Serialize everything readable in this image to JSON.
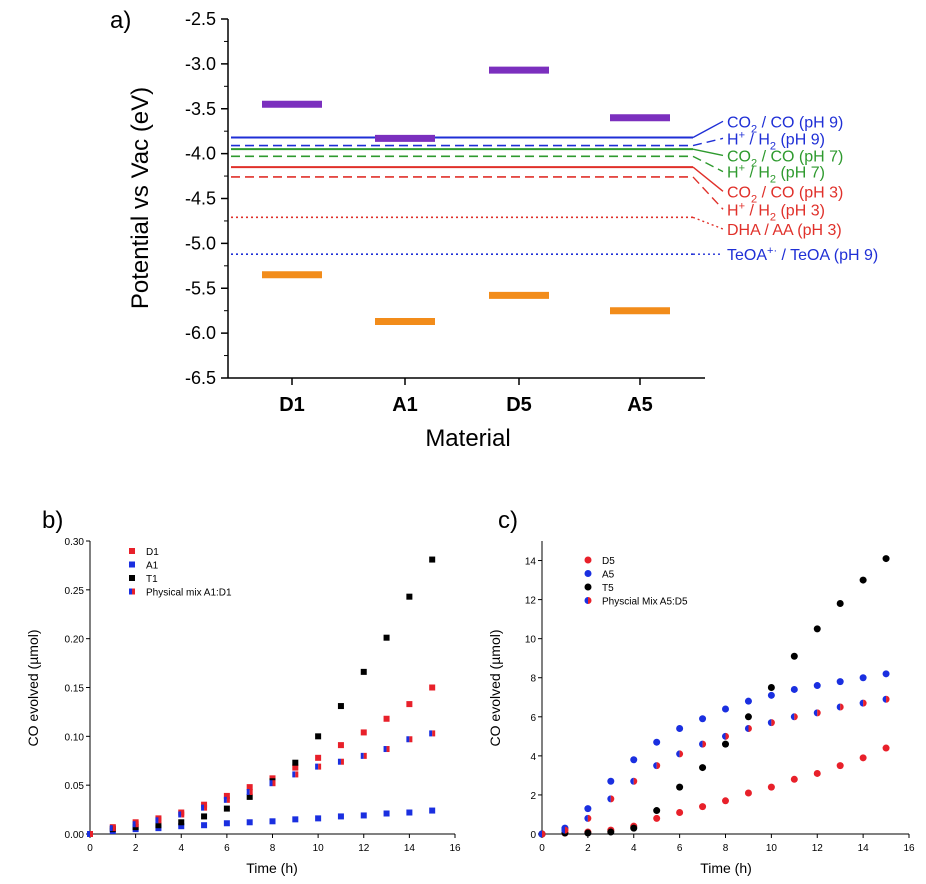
{
  "panels": [
    {
      "panel_label": "a)",
      "chart_data": {
        "type": "scatter",
        "xlabel": "Material",
        "ylabel": "Potential vs Vac (eV)",
        "categories": [
          "D1",
          "A1",
          "D5",
          "A5"
        ],
        "ylim": [
          -6.5,
          -2.5
        ],
        "yticks": [
          -2.5,
          -3.0,
          -3.5,
          -4.0,
          -4.5,
          -5.0,
          -5.5,
          -6.0,
          -6.5
        ],
        "ytick_labels": [
          "-2.5",
          "-3.0",
          "-3.5",
          "-4.0",
          "-4.5",
          "-5.0",
          "-5.5",
          "-6.0",
          "-6.5"
        ],
        "series": [
          {
            "color": "#7b2fbe",
            "values": [
              -3.45,
              -3.83,
              -3.07,
              -3.6
            ]
          },
          {
            "color": "#f28c1a",
            "values": [
              -5.35,
              -5.87,
              -5.58,
              -5.75
            ]
          }
        ],
        "reference_lines": [
          {
            "value": -3.82,
            "style": "solid",
            "color": "#1f2fd6",
            "label": "CO",
            "sub": "2",
            "label_rest": " / CO  (pH 9)",
            "label_y": -3.64
          },
          {
            "value": -3.91,
            "style": "dashed",
            "color": "#1f2fd6",
            "label": "H",
            "sup": "+",
            "label_rest": " / H",
            "sub2": "2",
            "label_tail": "  (pH 9)",
            "label_y": -3.83
          },
          {
            "value": -3.95,
            "style": "solid",
            "color": "#2e9a2e",
            "label": "CO",
            "sub": "2",
            "label_rest": " / CO  (pH 7)",
            "label_y": -4.02
          },
          {
            "value": -4.03,
            "style": "dashed",
            "color": "#2e9a2e",
            "label": "H",
            "sup": "+",
            "label_rest": " / H",
            "sub2": "2",
            "label_tail": "  (pH 7)",
            "label_y": -4.2
          },
          {
            "value": -4.15,
            "style": "solid",
            "color": "#e0302a",
            "label": "CO",
            "sub": "2",
            "label_rest": " / CO  (pH 3)",
            "label_y": -4.42
          },
          {
            "value": -4.26,
            "style": "dashed",
            "color": "#e0302a",
            "label": "H",
            "sup": "+",
            "label_rest": " / H",
            "sub2": "2",
            "label_tail": "  (pH 3)",
            "label_y": -4.62
          },
          {
            "value": -4.71,
            "style": "dotted",
            "color": "#e0302a",
            "label": "DHA / AA (pH 3)",
            "label_y": -4.84
          },
          {
            "value": -5.12,
            "style": "dotted",
            "color": "#1f2fd6",
            "label": "TeOA",
            "sup": "+·",
            "label_rest": " / TeOA (pH 9)",
            "label_y": -5.12
          }
        ]
      }
    },
    {
      "panel_label": "b)",
      "chart_data": {
        "type": "scatter",
        "xlabel": "Time (h)",
        "ylabel": "CO evolved (µmol)",
        "xlim": [
          0,
          16
        ],
        "ylim": [
          0,
          0.3
        ],
        "xticks": [
          0,
          2,
          4,
          6,
          8,
          10,
          12,
          14,
          16
        ],
        "yticks": [
          0.0,
          0.05,
          0.1,
          0.15,
          0.2,
          0.25,
          0.3
        ],
        "ytick_labels": [
          "0.00",
          "0.05",
          "0.10",
          "0.15",
          "0.20",
          "0.25",
          "0.30"
        ],
        "marker": "square",
        "legend_position": "top-left",
        "x": [
          0,
          1,
          2,
          3,
          4,
          5,
          6,
          7,
          8,
          9,
          10,
          11,
          12,
          13,
          14,
          15
        ],
        "series": [
          {
            "name": "D1",
            "color": "#e8202a",
            "values": [
              0,
              0.007,
              0.012,
              0.016,
              0.022,
              0.03,
              0.039,
              0.048,
              0.057,
              0.068,
              0.078,
              0.091,
              0.104,
              0.118,
              0.133,
              0.15
            ]
          },
          {
            "name": "A1",
            "color": "#1a2fe0",
            "values": [
              0,
              0.003,
              0.005,
              0.006,
              0.008,
              0.009,
              0.011,
              0.012,
              0.013,
              0.015,
              0.016,
              0.018,
              0.019,
              0.021,
              0.022,
              0.024
            ]
          },
          {
            "name": "T1",
            "color": "#000000",
            "values": [
              0,
              0.005,
              0.007,
              0.009,
              0.012,
              0.018,
              0.026,
              0.038,
              0.054,
              0.073,
              0.1,
              0.131,
              0.166,
              0.201,
              0.243,
              0.281
            ]
          },
          {
            "name": "Physical mix A1:D1",
            "color": "#1a2fe0",
            "color2": "#e8202a",
            "values": [
              0,
              0.006,
              0.01,
              0.014,
              0.02,
              0.027,
              0.035,
              0.043,
              0.052,
              0.061,
              0.069,
              0.074,
              0.08,
              0.087,
              0.097,
              0.103
            ]
          }
        ]
      }
    },
    {
      "panel_label": "c)",
      "chart_data": {
        "type": "scatter",
        "xlabel": "Time (h)",
        "ylabel": "CO evolved (µmol)",
        "xlim": [
          0,
          16
        ],
        "ylim": [
          0,
          15
        ],
        "xticks": [
          0,
          2,
          4,
          6,
          8,
          10,
          12,
          14,
          16
        ],
        "yticks": [
          0,
          2,
          4,
          6,
          8,
          10,
          12,
          14
        ],
        "ytick_labels": [
          "0",
          "2",
          "4",
          "6",
          "8",
          "10",
          "12",
          "14"
        ],
        "marker": "circle",
        "legend_position": "top-left",
        "x": [
          0,
          1,
          2,
          3,
          4,
          5,
          6,
          7,
          8,
          9,
          10,
          11,
          12,
          13,
          14,
          15
        ],
        "series": [
          {
            "name": "D5",
            "color": "#e8202a",
            "values": [
              0,
              0.05,
              0.1,
              0.2,
              0.4,
              0.8,
              1.1,
              1.4,
              1.7,
              2.1,
              2.4,
              2.8,
              3.1,
              3.5,
              3.9,
              4.4
            ]
          },
          {
            "name": "A5",
            "color": "#1a2fe0",
            "values": [
              0,
              0.3,
              1.3,
              2.7,
              3.8,
              4.7,
              5.4,
              5.9,
              6.4,
              6.8,
              7.1,
              7.4,
              7.6,
              7.8,
              8.0,
              8.2
            ]
          },
          {
            "name": "T5",
            "color": "#000000",
            "values": [
              0,
              0.05,
              0.05,
              0.1,
              0.3,
              1.2,
              2.4,
              3.4,
              4.6,
              6.0,
              7.5,
              9.1,
              10.5,
              11.8,
              13.0,
              14.1
            ]
          },
          {
            "name": "Physcial Mix A5:D5",
            "color": "#1a2fe0",
            "color2": "#e8202a",
            "values": [
              0,
              0.2,
              0.8,
              1.8,
              2.7,
              3.5,
              4.1,
              4.6,
              5.0,
              5.4,
              5.7,
              6.0,
              6.2,
              6.5,
              6.7,
              6.9
            ]
          }
        ]
      }
    }
  ]
}
